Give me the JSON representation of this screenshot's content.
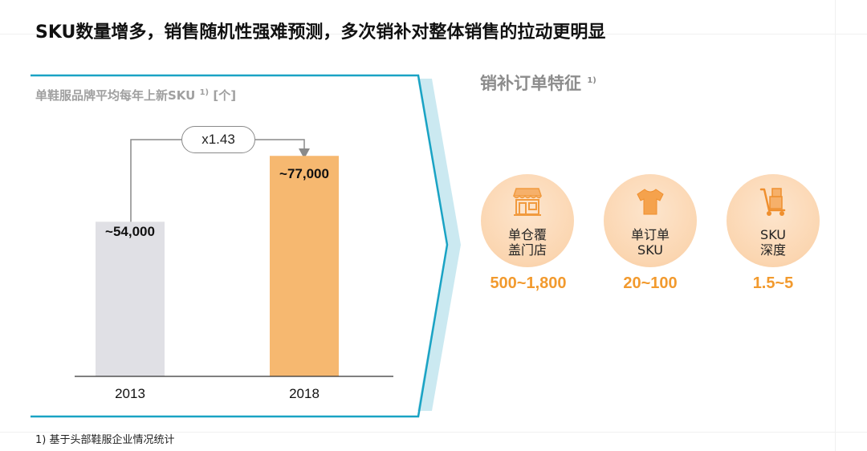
{
  "title": "SKU数量增多，销售随机性强难预测，多次销补对整体销售的拉动更明显",
  "left_panel": {
    "subtitle": "单鞋服品牌平均每年上新SKU",
    "subtitle_note": "1)",
    "subtitle_unit": "[个]",
    "multiplier_label": "x1.43"
  },
  "chart_data": {
    "type": "bar",
    "title": "单鞋服品牌平均每年上新SKU [个]",
    "categories": [
      "2013",
      "2018"
    ],
    "values": [
      54000,
      77000
    ],
    "value_labels": [
      "~54,000",
      "~77,000"
    ],
    "bar_colors": [
      "#e0e0e5",
      "#f6b870"
    ],
    "ylim": [
      0,
      95000
    ],
    "grid": false,
    "annotation": "x1.43"
  },
  "right_panel": {
    "title": "销补订单特征",
    "title_note": "1)",
    "features": [
      {
        "icon": "storefront-icon",
        "label_line1": "单仓覆",
        "label_line2": "盖门店",
        "value": "500~1,800"
      },
      {
        "icon": "tshirt-icon",
        "label_line1": "单订单",
        "label_line2": "SKU",
        "value": "20~100"
      },
      {
        "icon": "hand-truck-icon",
        "label_line1": "SKU",
        "label_line2": "深度",
        "value": "1.5~5"
      }
    ]
  },
  "footnote": "1) 基于头部鞋服企业情况统计",
  "colors": {
    "accent_teal": "#1aa3c4",
    "accent_light_teal": "#cbe9f1",
    "value_orange": "#f29a2e",
    "circle_fill": "#fbd6b1"
  }
}
